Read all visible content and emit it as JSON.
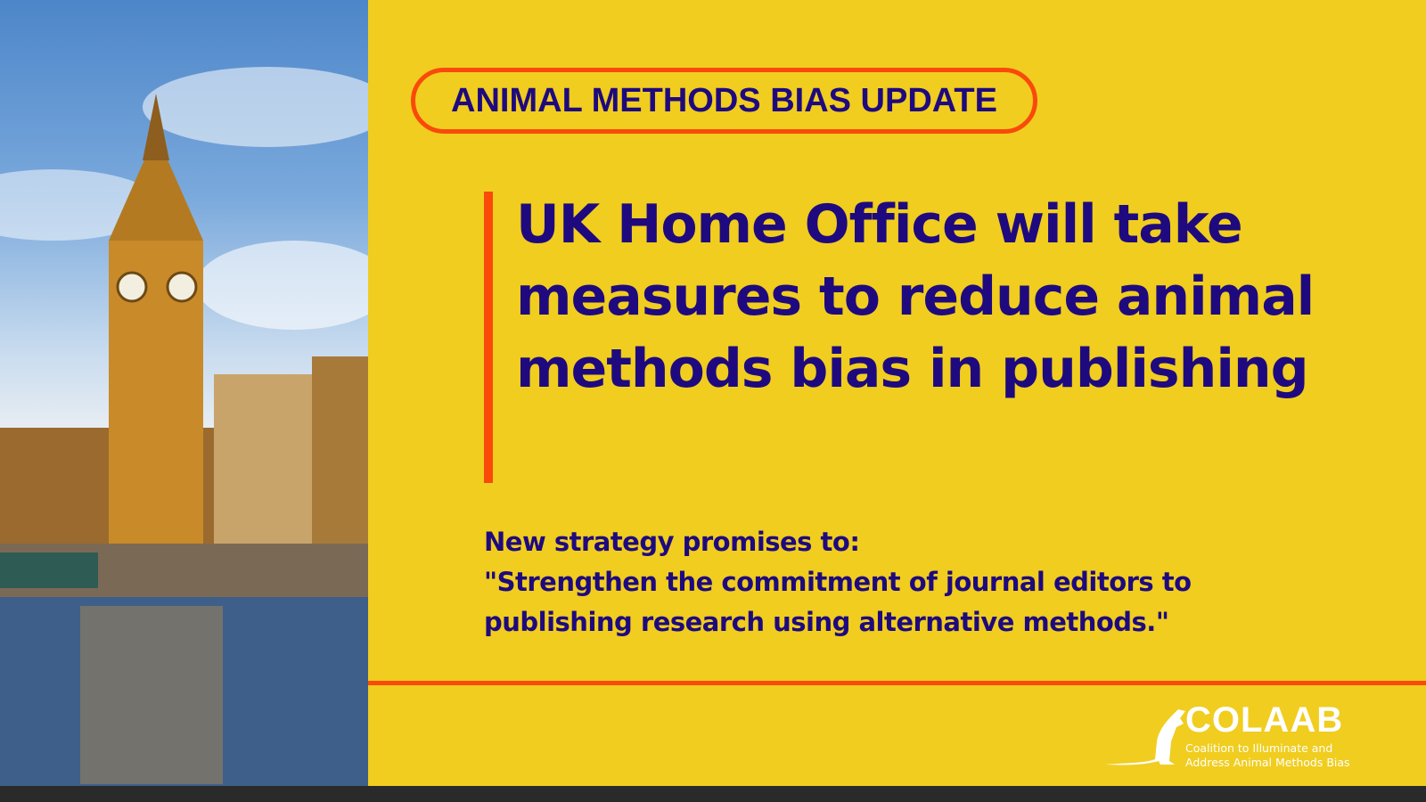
{
  "badge": {
    "label": "ANIMAL METHODS BIAS UPDATE"
  },
  "headline": "UK Home Office will take measures to reduce animal methods bias in publishing",
  "subtext": {
    "line1": "New strategy promises to:",
    "line2": "\"Strengthen the commitment of journal editors to publishing research using alternative methods.\""
  },
  "logo": {
    "name": "COLAAB",
    "tagline_1": "Coalition to Illuminate and",
    "tagline_2": "Address Animal Methods Bias"
  },
  "photo": {
    "subject": "big-ben-westminster-photo"
  },
  "colors": {
    "background": "#f0cd1f",
    "text": "#1e0a7e",
    "accent": "#f94a0a"
  }
}
